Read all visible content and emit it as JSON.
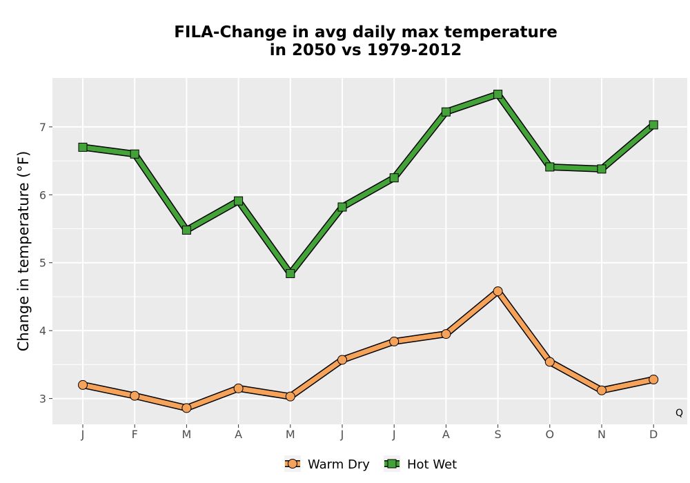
{
  "chart_data": {
    "type": "line",
    "title_line1": "FILA-Change in avg daily max temperature",
    "title_line2": "in 2050 vs 1979-2012",
    "xlabel": "",
    "ylabel": "Change in temperature (°F)",
    "categories": [
      "J",
      "F",
      "M",
      "A",
      "M",
      "J",
      "J",
      "A",
      "S",
      "O",
      "N",
      "D"
    ],
    "ylim": [
      2.62,
      7.72
    ],
    "yticks": [
      3,
      4,
      5,
      6,
      7
    ],
    "grid": true,
    "legend_position": "bottom",
    "corner_label": "Q",
    "series": [
      {
        "name": "Warm Dry",
        "marker": "circle",
        "color": "#F5A25A",
        "values": [
          3.2,
          3.04,
          2.86,
          3.15,
          3.03,
          3.57,
          3.84,
          3.95,
          4.58,
          3.54,
          3.12,
          3.28
        ]
      },
      {
        "name": "Hot Wet",
        "marker": "square",
        "color": "#43A338",
        "values": [
          6.7,
          6.6,
          5.48,
          5.91,
          4.84,
          5.82,
          6.25,
          7.22,
          7.48,
          6.41,
          6.38,
          7.03
        ]
      }
    ],
    "panel_background": "#EBEBEB",
    "grid_color": "#FFFFFF"
  }
}
